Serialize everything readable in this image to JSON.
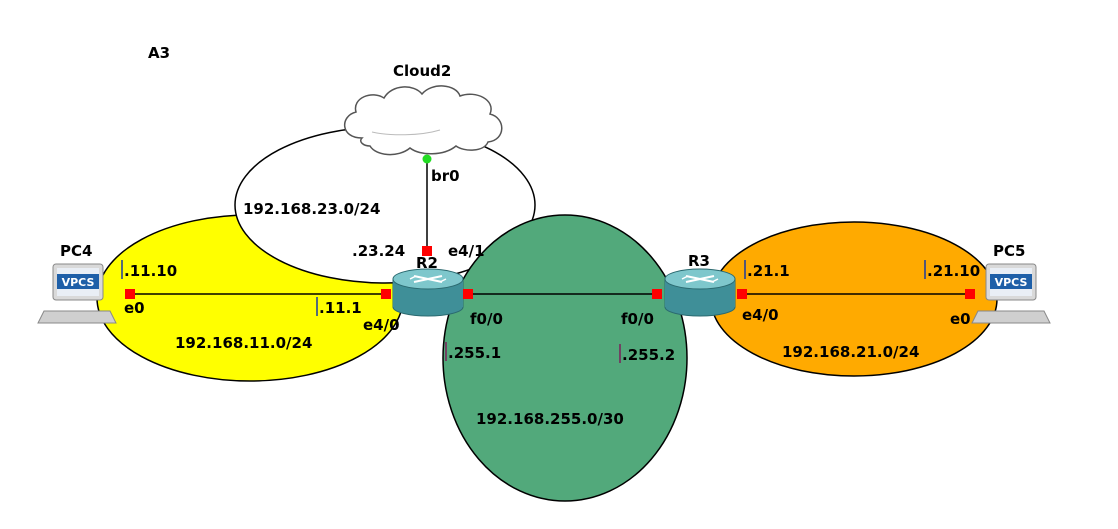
{
  "diagram": {
    "title": "A3",
    "cloud": {
      "name": "Cloud2",
      "port": "br0"
    },
    "networks": {
      "net_23": {
        "label": "192.168.23.0/24",
        "fill": "#ffffff"
      },
      "net_11": {
        "label": "192.168.11.0/24",
        "fill": "#ffff00"
      },
      "net_255": {
        "label": "192.168.255.0/30",
        "fill": "#52a97b"
      },
      "net_21": {
        "label": "192.168.21.0/24",
        "fill": "#ffaa00"
      }
    },
    "nodes": {
      "pc4": {
        "name": "PC4",
        "icon_text": "VPCS",
        "port": "e0",
        "ip": ".11.10"
      },
      "pc5": {
        "name": "PC5",
        "icon_text": "VPCS",
        "port": "e0",
        "ip": ".21.10"
      },
      "r2": {
        "name": "R2",
        "port_e41": "e4/1",
        "ip_e41": ".23.24",
        "port_e40": "e4/0",
        "ip_e40": ".11.1",
        "port_f00": "f0/0",
        "ip_f00": ".255.1"
      },
      "r3": {
        "name": "R3",
        "port_f00": "f0/0",
        "ip_f00": ".255.2",
        "port_e40": "e4/0",
        "ip_e40": ".21.1"
      }
    },
    "colors": {
      "link": "#000000",
      "port_down": "#ff0000",
      "port_up": "#22dd22",
      "router_body": "#3f8f98",
      "vpcs_badge": "#1e5fa8"
    }
  }
}
